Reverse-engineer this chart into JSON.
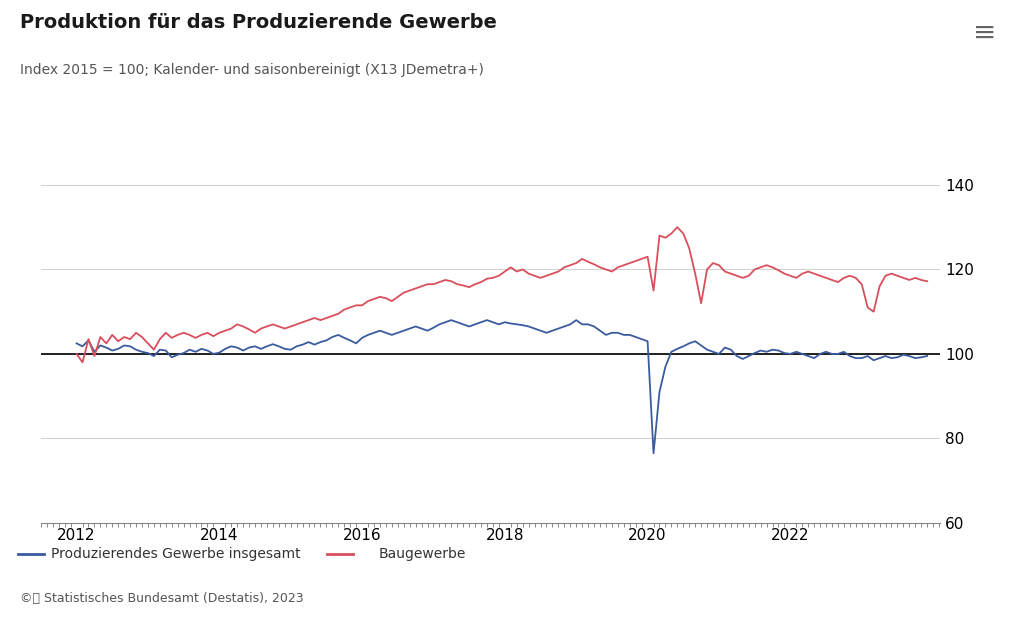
{
  "title": "Produktion für das Produzierende Gewerbe",
  "subtitle": "Index 2015 = 100; Kalender- und saisonbereinigt (X13 JDemetra+)",
  "ylim": [
    60,
    145
  ],
  "yticks": [
    60,
    80,
    100,
    120,
    140
  ],
  "background_color": "#ffffff",
  "line1_color": "#3a5ba0",
  "line2_color": "#d94f5c",
  "reference_line_value": 100,
  "legend_label1": "Produzierendes Gewerbe insgesamt",
  "legend_label2": "Baugewerbe",
  "copyright_text": "©📊 Statistisches Bundesamt (Destatis), 2023",
  "title_fontsize": 14,
  "subtitle_fontsize": 10,
  "tick_fontsize": 11,
  "series1": [
    102.5,
    101.8,
    103.2,
    100.5,
    102.0,
    101.5,
    100.8,
    101.2,
    102.0,
    101.8,
    101.0,
    100.5,
    100.2,
    99.5,
    101.0,
    100.8,
    99.2,
    99.8,
    100.2,
    101.0,
    100.5,
    101.2,
    100.8,
    100.0,
    100.3,
    101.2,
    101.8,
    101.5,
    100.8,
    101.5,
    101.8,
    101.2,
    101.8,
    102.3,
    101.8,
    101.2,
    101.0,
    101.8,
    102.2,
    102.8,
    102.2,
    102.8,
    103.2,
    104.0,
    104.5,
    103.8,
    103.2,
    102.5,
    103.8,
    104.5,
    105.0,
    105.5,
    105.0,
    104.5,
    105.0,
    105.5,
    106.0,
    106.5,
    106.0,
    105.5,
    106.2,
    107.0,
    107.5,
    108.0,
    107.5,
    107.0,
    106.5,
    107.0,
    107.5,
    108.0,
    107.5,
    107.0,
    107.5,
    107.2,
    107.0,
    106.8,
    106.5,
    106.0,
    105.5,
    105.0,
    105.5,
    106.0,
    106.5,
    107.0,
    108.0,
    107.0,
    107.0,
    106.5,
    105.5,
    104.5,
    105.0,
    105.0,
    104.5,
    104.5,
    104.0,
    103.5,
    103.0,
    76.5,
    91.0,
    97.0,
    100.5,
    101.2,
    101.8,
    102.5,
    103.0,
    102.0,
    101.0,
    100.5,
    100.0,
    101.5,
    101.0,
    99.5,
    98.8,
    99.5,
    100.2,
    100.8,
    100.5,
    101.0,
    100.8,
    100.2,
    100.0,
    100.5,
    100.0,
    99.5,
    99.0,
    100.0,
    100.5,
    100.0,
    100.0,
    100.5,
    99.5,
    99.0,
    99.0,
    99.5,
    98.5,
    99.0,
    99.5,
    99.0,
    99.2,
    99.8,
    99.5,
    99.0,
    99.2,
    99.5
  ],
  "series2": [
    100.0,
    98.0,
    103.5,
    99.5,
    104.0,
    102.5,
    104.5,
    103.0,
    104.0,
    103.5,
    105.0,
    104.0,
    102.5,
    101.0,
    103.5,
    105.0,
    103.8,
    104.5,
    105.0,
    104.5,
    103.8,
    104.5,
    105.0,
    104.2,
    105.0,
    105.5,
    106.0,
    107.0,
    106.5,
    105.8,
    105.0,
    106.0,
    106.5,
    107.0,
    106.5,
    106.0,
    106.5,
    107.0,
    107.5,
    108.0,
    108.5,
    108.0,
    108.5,
    109.0,
    109.5,
    110.5,
    111.0,
    111.5,
    111.5,
    112.5,
    113.0,
    113.5,
    113.2,
    112.5,
    113.5,
    114.5,
    115.0,
    115.5,
    116.0,
    116.5,
    116.5,
    117.0,
    117.5,
    117.2,
    116.5,
    116.2,
    115.8,
    116.5,
    117.0,
    117.8,
    118.0,
    118.5,
    119.5,
    120.5,
    119.5,
    120.0,
    119.0,
    118.5,
    118.0,
    118.5,
    119.0,
    119.5,
    120.5,
    121.0,
    121.5,
    122.5,
    121.8,
    121.2,
    120.5,
    120.0,
    119.5,
    120.5,
    121.0,
    121.5,
    122.0,
    122.5,
    123.0,
    115.0,
    128.0,
    127.5,
    128.5,
    130.0,
    128.5,
    125.0,
    119.0,
    112.0,
    120.0,
    121.5,
    121.0,
    119.5,
    119.0,
    118.5,
    118.0,
    118.5,
    120.0,
    120.5,
    121.0,
    120.5,
    119.8,
    119.0,
    118.5,
    118.0,
    119.0,
    119.5,
    119.0,
    118.5,
    118.0,
    117.5,
    117.0,
    118.0,
    118.5,
    118.0,
    116.5,
    111.0,
    110.0,
    116.0,
    118.5,
    119.0,
    118.5,
    118.0,
    117.5,
    118.0,
    117.5,
    117.2
  ],
  "x_start_year": 2012,
  "n_months": 144,
  "xtick_years": [
    2012,
    2014,
    2016,
    2018,
    2020,
    2022
  ]
}
